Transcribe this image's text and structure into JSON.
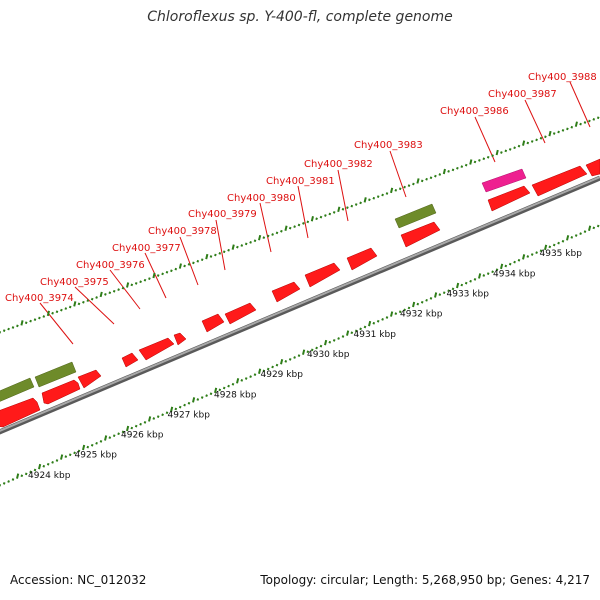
{
  "title": "Chloroflexus sp. Y-400-fl, complete genome",
  "footer": {
    "accession": "Accession: NC_012032",
    "summary": "Topology: circular; Length: 5,268,950 bp; Genes: 4,217"
  },
  "colors": {
    "cds": "#ff1a1a",
    "rna_gene": "#6e8b2a",
    "pseudo": "#ee2090",
    "label": "#dd1111",
    "tick": "#2e7d18",
    "backbone": "#8c8c8c"
  },
  "scale": {
    "unit": "kbp",
    "ticks": [
      {
        "kbp": 4924,
        "label": "4924 kbp"
      },
      {
        "kbp": 4925,
        "label": "4925 kbp"
      },
      {
        "kbp": 4926,
        "label": "4926 kbp"
      },
      {
        "kbp": 4927,
        "label": "4927 kbp"
      },
      {
        "kbp": 4928,
        "label": "4928 kbp"
      },
      {
        "kbp": 4929,
        "label": "4929 kbp"
      },
      {
        "kbp": 4930,
        "label": "4930 kbp"
      },
      {
        "kbp": 4931,
        "label": "4931 kbp"
      },
      {
        "kbp": 4932,
        "label": "4932 kbp"
      },
      {
        "kbp": 4933,
        "label": "4933 kbp"
      },
      {
        "kbp": 4934,
        "label": "4934 kbp"
      },
      {
        "kbp": 4935,
        "label": "4935 kbp"
      }
    ]
  },
  "gene_labels": [
    {
      "id": "Chy400_3974"
    },
    {
      "id": "Chy400_3975"
    },
    {
      "id": "Chy400_3976"
    },
    {
      "id": "Chy400_3977"
    },
    {
      "id": "Chy400_3978"
    },
    {
      "id": "Chy400_3979"
    },
    {
      "id": "Chy400_3980"
    },
    {
      "id": "Chy400_3981"
    },
    {
      "id": "Chy400_3982"
    },
    {
      "id": "Chy400_3983"
    },
    {
      "id": "Chy400_3986"
    },
    {
      "id": "Chy400_3987"
    },
    {
      "id": "Chy400_3988"
    }
  ]
}
